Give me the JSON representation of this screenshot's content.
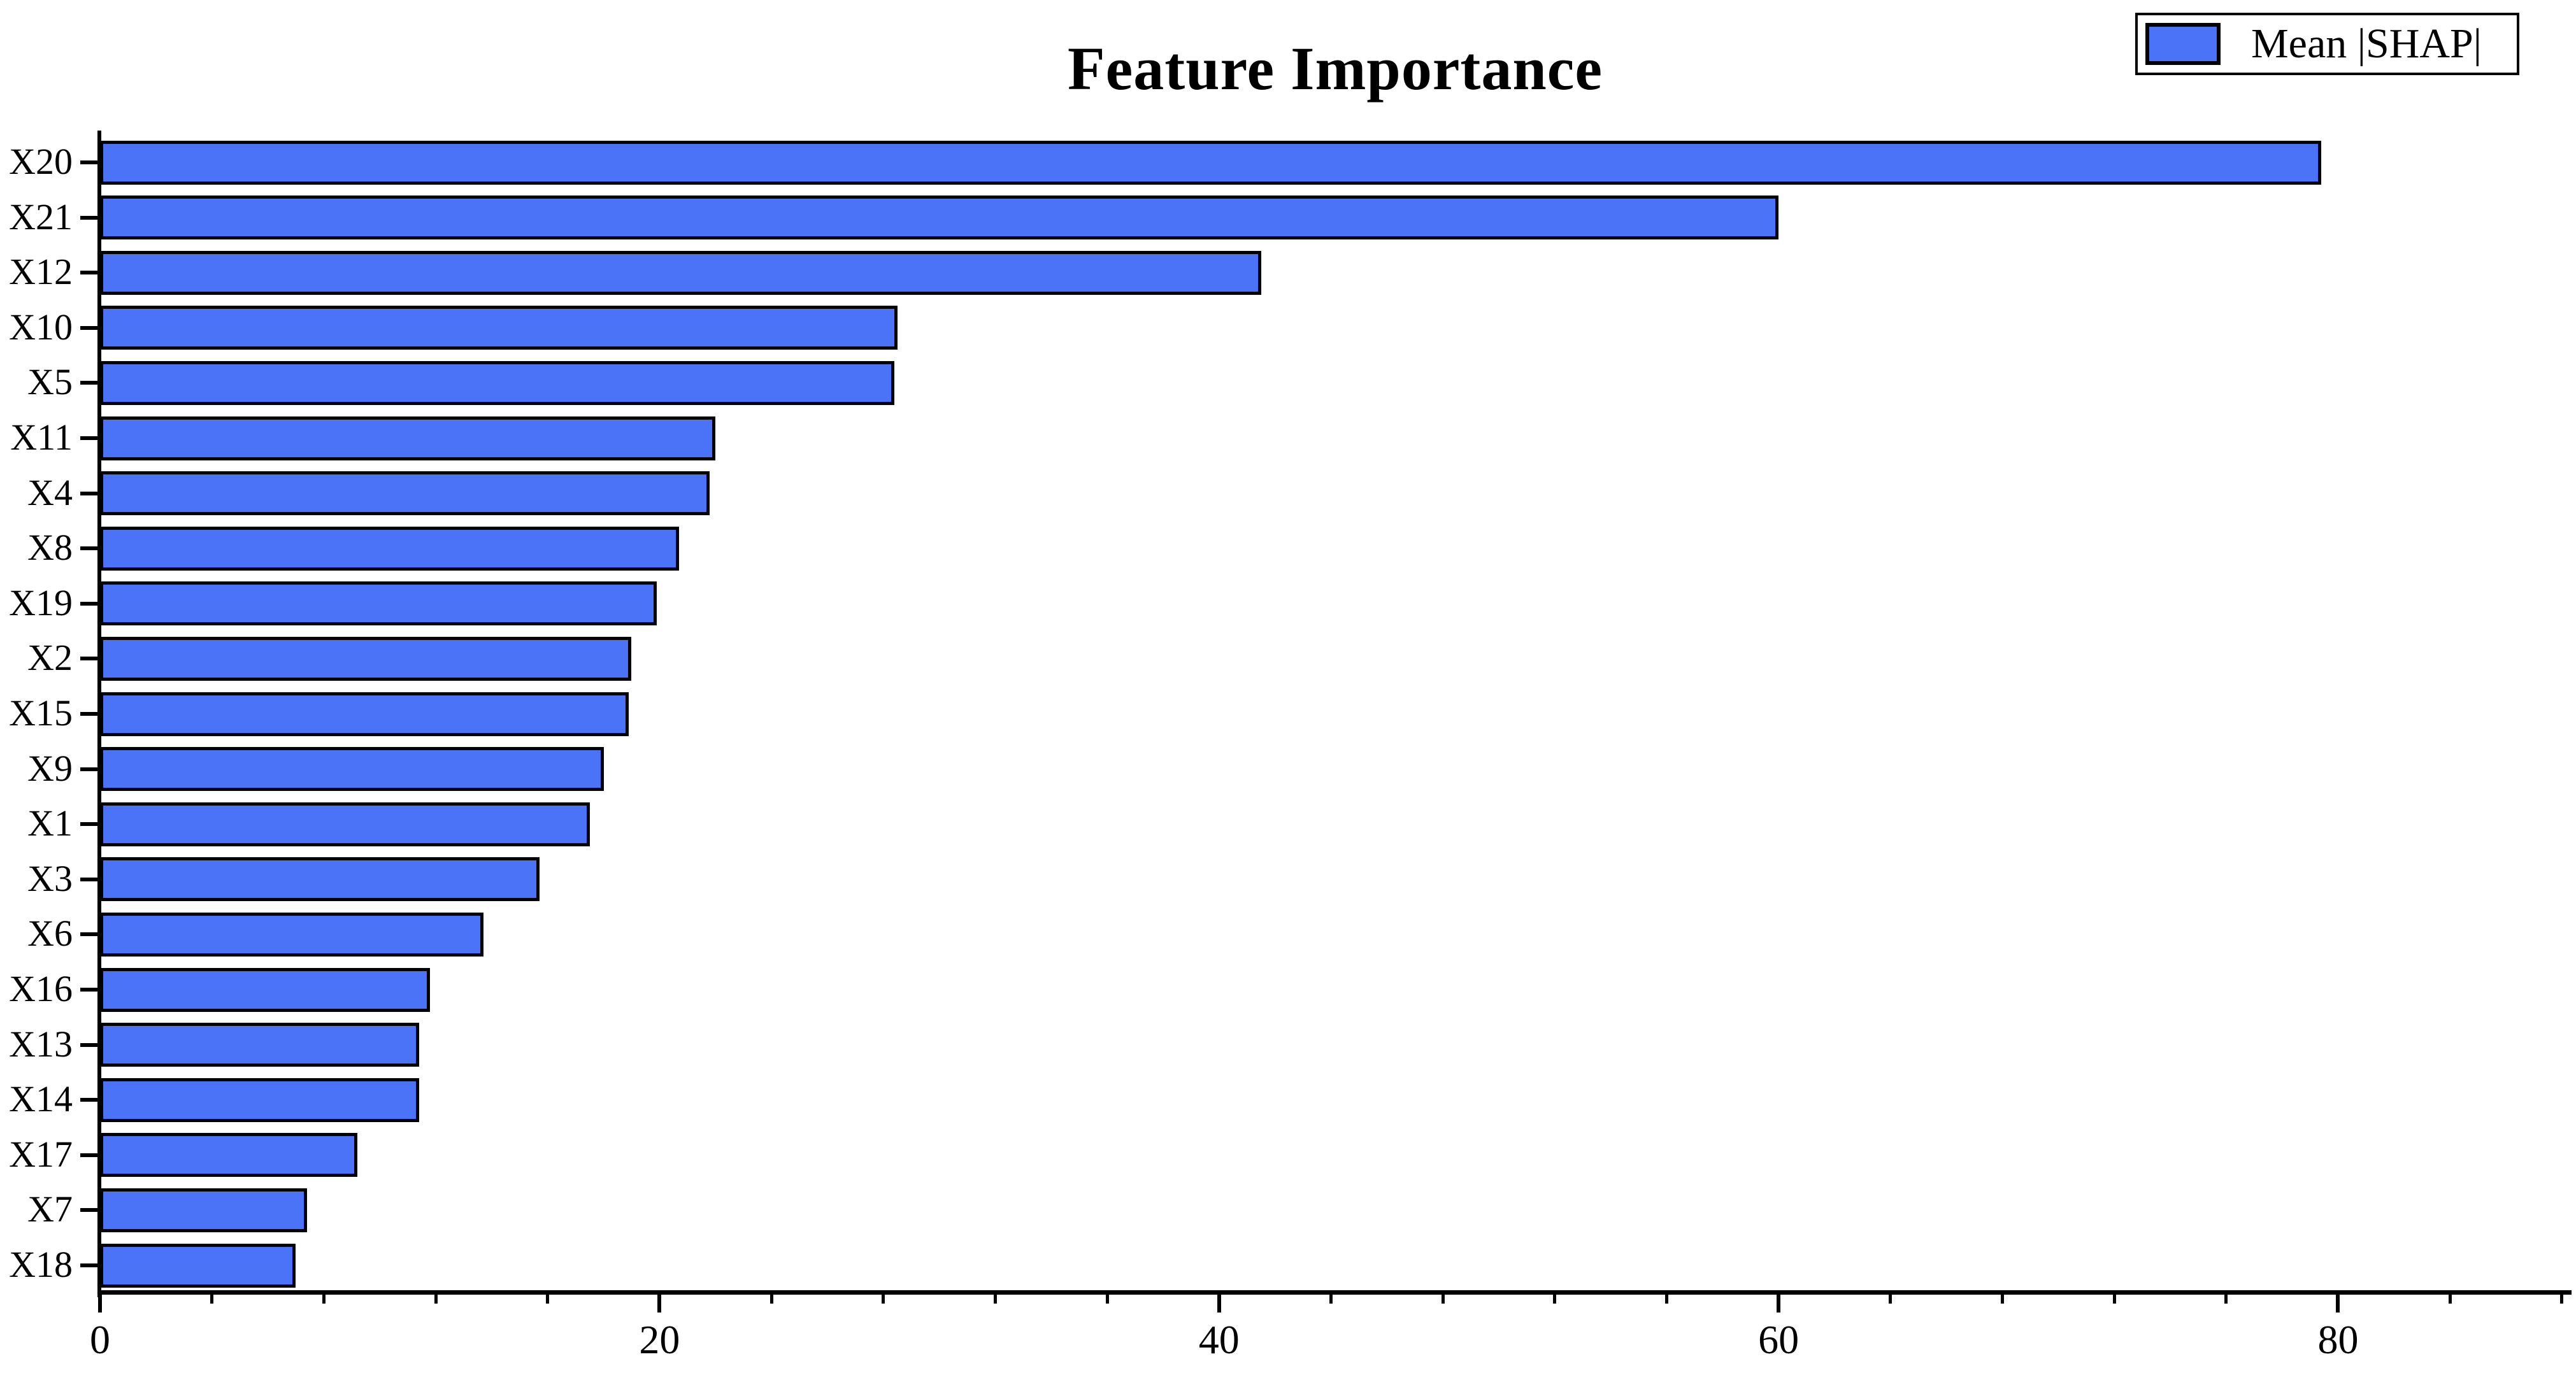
{
  "chart_data": {
    "type": "bar",
    "orientation": "horizontal",
    "title": "Feature Importance",
    "legend_label": "Mean |SHAP|",
    "legend_position": "upper right",
    "categories": [
      "X20",
      "X21",
      "X12",
      "X10",
      "X5",
      "X11",
      "X4",
      "X8",
      "X19",
      "X2",
      "X15",
      "X9",
      "X1",
      "X3",
      "X6",
      "X16",
      "X13",
      "X14",
      "X17",
      "X7",
      "X18"
    ],
    "values": [
      79.4,
      60.0,
      41.5,
      28.5,
      28.4,
      22.0,
      21.8,
      20.7,
      19.9,
      19.0,
      18.9,
      18.0,
      17.5,
      15.7,
      13.7,
      11.8,
      11.4,
      11.4,
      9.2,
      7.4,
      7.0
    ],
    "xlabel": "",
    "ylabel": "",
    "xlim": [
      0,
      88.3
    ],
    "x_major_ticks": [
      0,
      20,
      40,
      60,
      80
    ],
    "x_minor_tick_step": 4,
    "grid": false,
    "bar_color": "#4a73f7",
    "bar_edge_color": "#000000",
    "axis_color": "#000000",
    "background": "#ffffff"
  }
}
